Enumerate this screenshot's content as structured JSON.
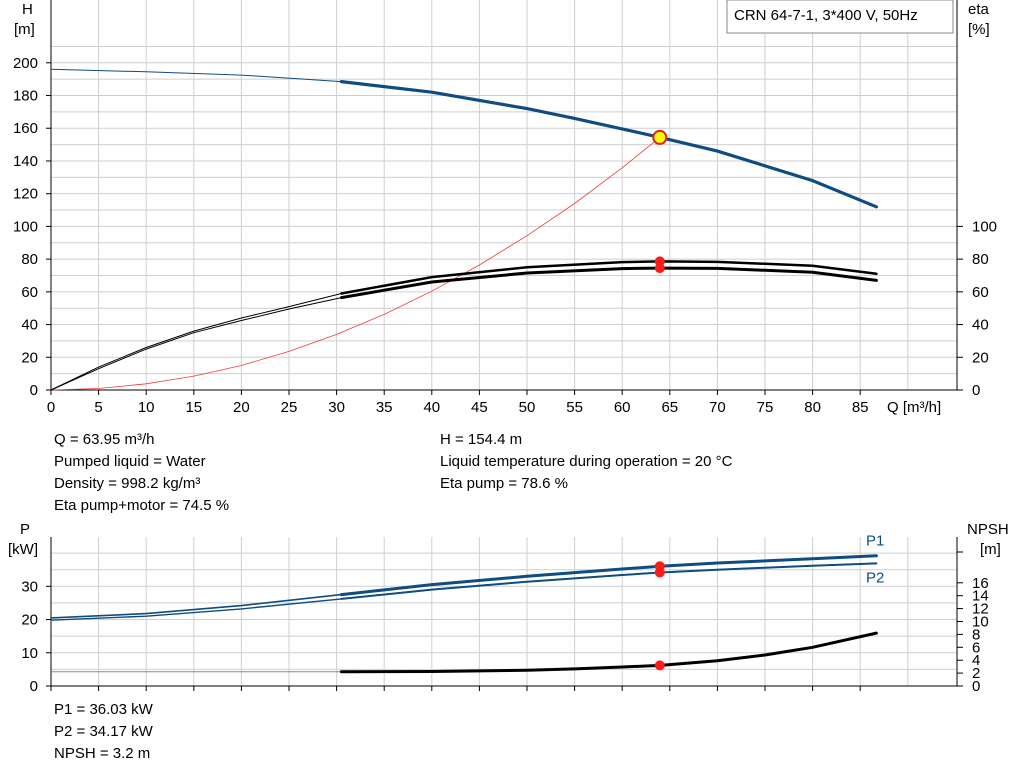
{
  "title": "CRN 64-7-1, 3*400 V, 50Hz",
  "chart_data": [
    {
      "type": "line",
      "y_label": [
        "H",
        "[m]"
      ],
      "y2_label": [
        "eta",
        "[%]"
      ],
      "x_label": "Q [m³/h]",
      "xlim": [
        0,
        90
      ],
      "ylim": [
        0,
        210
      ],
      "x_ticks": [
        "0",
        "5",
        "10",
        "15",
        "20",
        "25",
        "30",
        "35",
        "40",
        "45",
        "50",
        "55",
        "60",
        "65",
        "70",
        "75",
        "80",
        "85"
      ],
      "y_ticks": [
        "0",
        "20",
        "40",
        "60",
        "80",
        "100",
        "120",
        "140",
        "160",
        "180",
        "200"
      ],
      "y2_ticks": [
        "0",
        "20",
        "40",
        "60",
        "80",
        "100"
      ],
      "grid": true,
      "series": [
        {
          "key": "head",
          "color": "#0f4c81",
          "x": [
            0,
            10,
            20,
            30.5,
            40,
            50,
            55,
            64,
            70,
            80,
            86.7
          ],
          "y": [
            196,
            194.5,
            192.5,
            188.5,
            182,
            172,
            166,
            154.4,
            146,
            128,
            112
          ]
        },
        {
          "key": "eta_pump",
          "color": "#000000",
          "x": [
            0,
            5,
            10,
            15,
            20,
            25,
            30.5,
            40,
            50,
            60,
            64,
            70,
            80,
            86.7
          ],
          "y": [
            0,
            14,
            26,
            36,
            44,
            51,
            59,
            69,
            75,
            78.2,
            78.6,
            78.3,
            76,
            71
          ]
        },
        {
          "key": "eta_pump_motor",
          "color": "#000000",
          "x": [
            0,
            5,
            10,
            15,
            20,
            25,
            30.5,
            40,
            50,
            60,
            64,
            70,
            80,
            86.7
          ],
          "y": [
            0,
            13,
            25,
            35,
            42.5,
            49.5,
            56.5,
            66,
            71.5,
            74.2,
            74.5,
            74.3,
            72,
            67
          ]
        },
        {
          "key": "system",
          "color": "#f03c3c",
          "x": [
            0,
            5,
            10,
            15,
            20,
            25,
            30,
            35,
            40,
            45,
            50,
            55,
            60,
            63.95
          ],
          "y": [
            0,
            0.9,
            3.8,
            8.5,
            15,
            23.6,
            34,
            46.2,
            60.4,
            76.4,
            94.3,
            114,
            135.8,
            154.4
          ]
        }
      ],
      "operating_points": [
        {
          "x": 63.95,
          "y": 154.4,
          "style": "duty"
        },
        {
          "x": 63.95,
          "y": 78.6,
          "style": "red"
        },
        {
          "x": 63.95,
          "y": 74.5,
          "style": "red"
        }
      ]
    },
    {
      "type": "line",
      "y_label": [
        "P",
        "[kW]"
      ],
      "y2_label": [
        "NPSH",
        "[m]"
      ],
      "xlim": [
        0,
        90
      ],
      "ylim": [
        0,
        42
      ],
      "y_ticks": [
        "0",
        "10",
        "20",
        "30"
      ],
      "y2_ticks": [
        "0",
        "2",
        "4",
        "6",
        "8",
        "10",
        "12",
        "14",
        "16"
      ],
      "grid": true,
      "series": [
        {
          "key": "P1",
          "name": "P1",
          "color": "#0f4c81",
          "x": [
            0,
            10,
            20,
            30.5,
            40,
            50,
            60,
            64,
            70,
            80,
            86.7
          ],
          "y": [
            20.5,
            21.8,
            24.2,
            27.5,
            30.5,
            33,
            35.2,
            36.03,
            37,
            38.3,
            39.2
          ]
        },
        {
          "key": "P2",
          "name": "P2",
          "color": "#0f4c81",
          "x": [
            0,
            10,
            20,
            30.5,
            40,
            50,
            60,
            64,
            70,
            80,
            86.7
          ],
          "y": [
            19.8,
            21,
            23.2,
            26.2,
            29,
            31.4,
            33.4,
            34.17,
            35,
            36.2,
            36.9
          ]
        },
        {
          "key": "NPSH",
          "color": "#000000",
          "x": [
            0,
            10,
            20,
            30.5,
            40,
            50,
            55,
            60,
            64,
            70,
            75,
            80,
            86.7
          ],
          "y": [
            2.2,
            2.2,
            2.2,
            2.2,
            2.25,
            2.45,
            2.65,
            2.95,
            3.2,
            3.9,
            4.8,
            6,
            8.2
          ]
        }
      ],
      "operating_points": [
        {
          "x": 63.95,
          "y": 36.03,
          "style": "red"
        },
        {
          "x": 63.95,
          "y": 34.17,
          "style": "red"
        },
        {
          "x": 63.95,
          "y": 3.2,
          "style": "red",
          "axis": "NPSH"
        }
      ]
    }
  ],
  "duty_info": {
    "left": [
      "Q = 63.95 m³/h",
      "Pumped liquid = Water",
      "Density = 998.2 kg/m³",
      "Eta pump+motor = 74.5 %"
    ],
    "right": [
      "H = 154.4 m",
      "Liquid temperature during operation = 20 °C",
      "Eta pump = 78.6 %"
    ]
  },
  "power_info": [
    "P1 = 36.03 kW",
    "P2 = 34.17 kW",
    "NPSH = 3.2 m"
  ]
}
